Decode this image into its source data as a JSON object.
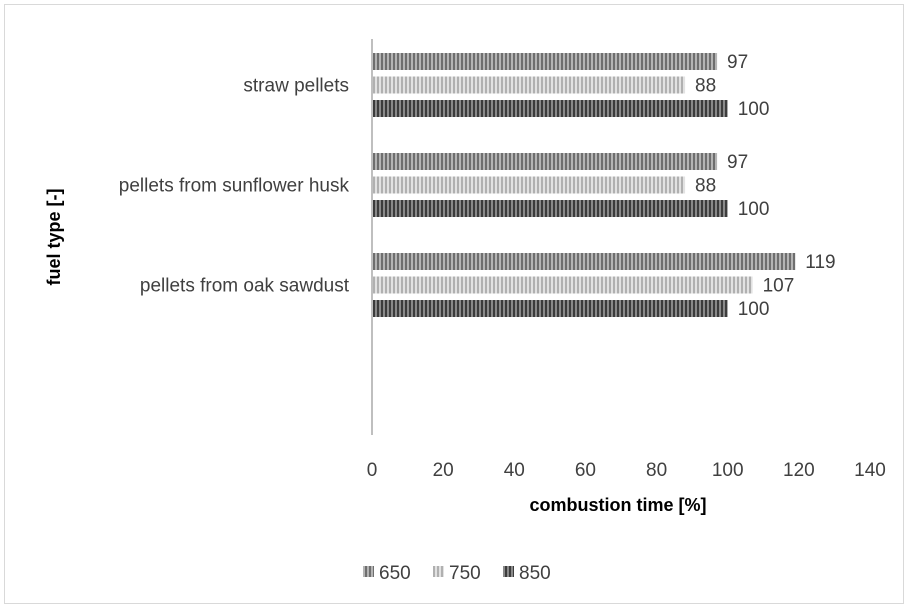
{
  "chart_data": {
    "type": "bar",
    "orientation": "horizontal",
    "categories": [
      "straw pellets",
      "pellets from sunflower husk",
      "pellets from oak sawdust"
    ],
    "series": [
      {
        "name": "650",
        "values": [
          97,
          97,
          119
        ],
        "color": "#8c8c8c"
      },
      {
        "name": "750",
        "values": [
          88,
          88,
          107
        ],
        "color": "#c8c8c8"
      },
      {
        "name": "850",
        "values": [
          100,
          100,
          100
        ],
        "color": "#6b6b6b"
      }
    ],
    "xlabel": "combustion time [%]",
    "ylabel": "fuel type [-]",
    "xlim": [
      0,
      140
    ],
    "xticks": [
      "0",
      "20",
      "40",
      "60",
      "80",
      "100",
      "120",
      "140"
    ],
    "grid": false,
    "legend_position": "bottom"
  }
}
